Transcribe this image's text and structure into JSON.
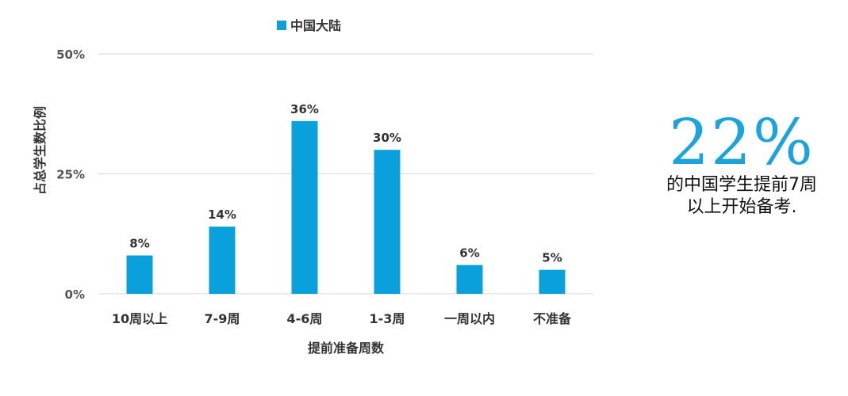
{
  "chart_data": {
    "type": "bar",
    "categories": [
      "10周以上",
      "7-9周",
      "4-6周",
      "1-3周",
      "一周以内",
      "不准备"
    ],
    "series": [
      {
        "name": "中国大陆",
        "values": [
          8,
          14,
          36,
          30,
          6,
          5
        ]
      }
    ],
    "data_labels": [
      "8%",
      "14%",
      "36%",
      "30%",
      "6%",
      "5%"
    ],
    "xlabel": "提前准备周数",
    "ylabel": "占总学生数比例",
    "ylim": [
      0,
      50
    ],
    "yticks": [
      0,
      25,
      50
    ],
    "ytick_labels": [
      "0%",
      "25%",
      "50%"
    ],
    "grid": true,
    "legend_position": "top",
    "bar_color": "#0aa0dc",
    "grid_color": "#d9d9d9"
  },
  "callout": {
    "value": "22%",
    "line1": "的中国学生提前7周",
    "line2": "以上开始备考.",
    "color": "#1aa3dc"
  }
}
